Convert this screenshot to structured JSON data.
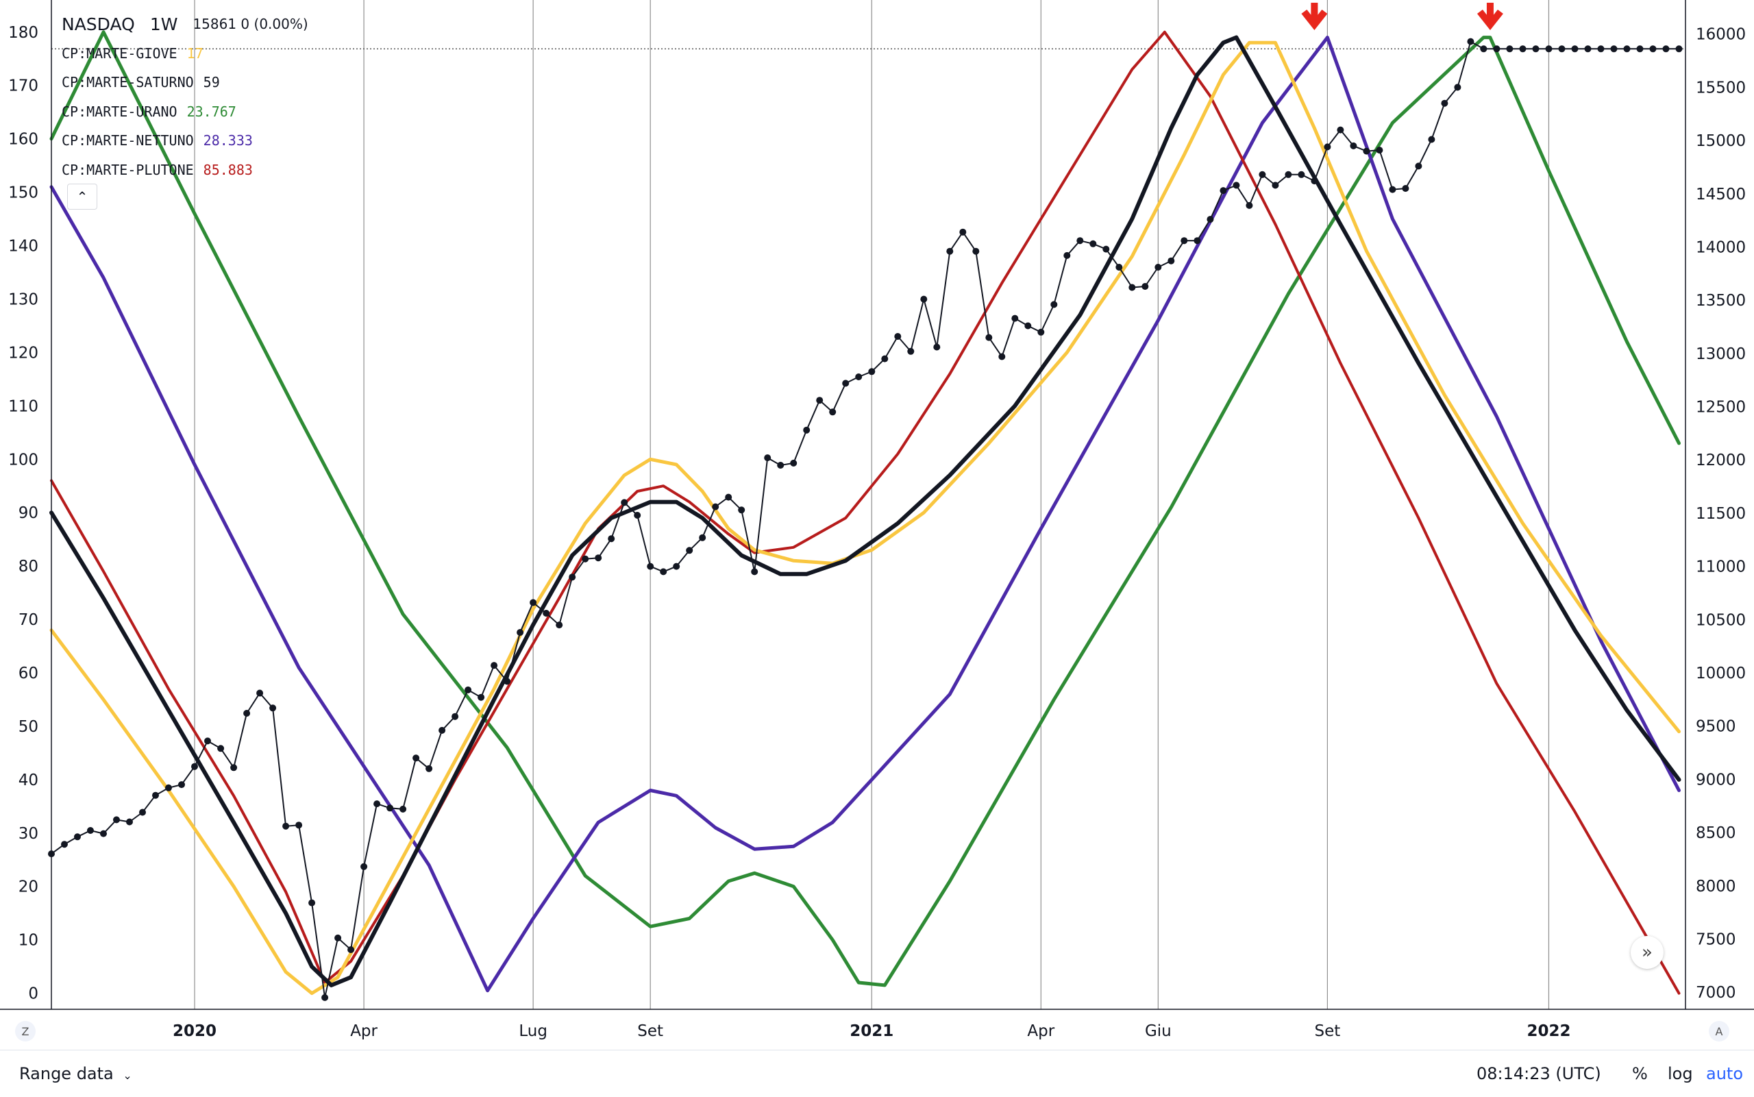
{
  "legend": {
    "symbol": "NASDAQ",
    "timeframe": "1W",
    "quote": "15861 0 (0.00%)",
    "indicators": [
      {
        "name": "CP:MARTE-GIOVE",
        "value": "17",
        "color": "#f9c640"
      },
      {
        "name": "CP:MARTE-SATURNO",
        "value": "59",
        "color": "#131722"
      },
      {
        "name": "CP:MARTE-URANO",
        "value": "23.767",
        "color": "#2e8b35"
      },
      {
        "name": "CP:MARTE-NETTUNO",
        "value": "28.333",
        "color": "#4b2aa8"
      },
      {
        "name": "CP:MARTE-PLUTONE",
        "value": "85.883",
        "color": "#b71c1c"
      }
    ],
    "collapse_icon": "chevron-up-icon"
  },
  "bottom": {
    "range_label": "Range data",
    "clock": "08:14:23 (UTC)",
    "percent": "%",
    "log": "log",
    "auto": "auto",
    "left_corner": "Z",
    "right_corner": "A",
    "scroll_icon": "double-chevron-right-icon"
  },
  "markers": {
    "arrow_color": "#e8261c",
    "arrow_icon": "arrow-down-icon"
  },
  "chart_data": {
    "type": "line",
    "x_ticks": [
      {
        "label": "2020",
        "t": 12,
        "bold": true
      },
      {
        "label": "Apr",
        "t": 25
      },
      {
        "label": "Lug",
        "t": 38
      },
      {
        "label": "Set",
        "t": 47
      },
      {
        "label": "2021",
        "t": 64,
        "bold": true
      },
      {
        "label": "Apr",
        "t": 77
      },
      {
        "label": "Giu",
        "t": 86
      },
      {
        "label": "Set",
        "t": 99
      },
      {
        "label": "2022",
        "t": 116,
        "bold": true
      }
    ],
    "x_range": [
      1,
      126.5
    ],
    "left_axis": {
      "ticks": [
        0,
        10,
        20,
        30,
        40,
        50,
        60,
        70,
        80,
        90,
        100,
        110,
        120,
        130,
        140,
        150,
        160,
        170,
        180
      ],
      "range": [
        -3,
        186
      ]
    },
    "right_axis": {
      "ticks": [
        7000,
        7500,
        8000,
        8500,
        9000,
        9500,
        10000,
        10500,
        11000,
        11500,
        12000,
        12500,
        13000,
        13500,
        14000,
        14500,
        15000,
        15500,
        16000
      ],
      "range": [
        6840,
        16320
      ]
    },
    "price_line": {
      "value": 15861
    },
    "marker_weeks": [
      98,
      111.5
    ],
    "series": [
      {
        "name": "CP:MARTE-URANO",
        "color": "#2e8b35",
        "width": 5,
        "axis": "left",
        "points": [
          [
            1,
            160
          ],
          [
            5,
            180
          ],
          [
            12,
            146
          ],
          [
            20,
            108
          ],
          [
            28,
            71
          ],
          [
            36,
            46
          ],
          [
            42,
            22
          ],
          [
            47,
            12.5
          ],
          [
            50,
            14
          ],
          [
            53,
            21
          ],
          [
            55,
            22.5
          ],
          [
            58,
            20
          ],
          [
            61,
            10
          ],
          [
            63,
            2
          ],
          [
            65,
            1.5
          ],
          [
            70,
            21
          ],
          [
            78,
            55
          ],
          [
            87,
            91
          ],
          [
            96,
            131
          ],
          [
            104,
            163
          ],
          [
            111,
            179
          ],
          [
            111.5,
            179
          ],
          [
            116,
            154
          ],
          [
            122,
            122
          ],
          [
            126,
            103
          ]
        ]
      },
      {
        "name": "CP:MARTE-NETTUNO",
        "color": "#4b2aa8",
        "width": 5,
        "axis": "left",
        "points": [
          [
            1,
            151
          ],
          [
            5,
            134
          ],
          [
            12,
            99
          ],
          [
            20,
            61
          ],
          [
            30,
            24
          ],
          [
            34.5,
            0.5
          ],
          [
            38,
            14
          ],
          [
            43,
            32
          ],
          [
            47,
            38
          ],
          [
            49,
            37
          ],
          [
            52,
            31
          ],
          [
            55,
            27
          ],
          [
            58,
            27.5
          ],
          [
            61,
            32
          ],
          [
            64,
            40
          ],
          [
            70,
            56
          ],
          [
            77,
            87
          ],
          [
            86,
            126
          ],
          [
            94,
            163
          ],
          [
            99,
            179
          ],
          [
            104,
            145
          ],
          [
            112,
            108
          ],
          [
            120,
            66
          ],
          [
            126,
            38
          ]
        ]
      },
      {
        "name": "CP:MARTE-PLUTONE",
        "color": "#b71c1c",
        "width": 4,
        "axis": "left",
        "points": [
          [
            1,
            96
          ],
          [
            5,
            79
          ],
          [
            10,
            57
          ],
          [
            15,
            37
          ],
          [
            19,
            19
          ],
          [
            22,
            2
          ],
          [
            24,
            6
          ],
          [
            28,
            22
          ],
          [
            32,
            40
          ],
          [
            36,
            57
          ],
          [
            40,
            74
          ],
          [
            43,
            87
          ],
          [
            46,
            94
          ],
          [
            48,
            95
          ],
          [
            50,
            92
          ],
          [
            53,
            86
          ],
          [
            55,
            82.5
          ],
          [
            58,
            83.5
          ],
          [
            62,
            89
          ],
          [
            66,
            101
          ],
          [
            70,
            116
          ],
          [
            74,
            133
          ],
          [
            79,
            153
          ],
          [
            84,
            173
          ],
          [
            86.5,
            180
          ],
          [
            90,
            168
          ],
          [
            95,
            144
          ],
          [
            100,
            118
          ],
          [
            106,
            89
          ],
          [
            112,
            58
          ],
          [
            118,
            34
          ],
          [
            122,
            17
          ],
          [
            126,
            0
          ]
        ]
      },
      {
        "name": "CP:MARTE-GIOVE",
        "color": "#f9c640",
        "width": 5,
        "axis": "left",
        "points": [
          [
            1,
            68
          ],
          [
            5,
            55
          ],
          [
            10,
            38
          ],
          [
            15,
            20
          ],
          [
            19,
            4
          ],
          [
            21,
            0
          ],
          [
            23,
            3
          ],
          [
            27,
            21
          ],
          [
            31,
            39
          ],
          [
            35,
            57
          ],
          [
            38,
            72
          ],
          [
            42,
            88
          ],
          [
            45,
            97
          ],
          [
            47,
            100
          ],
          [
            49,
            99
          ],
          [
            51,
            94
          ],
          [
            53,
            87
          ],
          [
            55,
            83
          ],
          [
            58,
            81
          ],
          [
            61,
            80.5
          ],
          [
            64,
            83
          ],
          [
            68,
            90
          ],
          [
            73,
            103
          ],
          [
            79,
            120
          ],
          [
            84,
            138
          ],
          [
            88,
            157
          ],
          [
            91,
            172
          ],
          [
            93,
            178
          ],
          [
            95,
            178
          ],
          [
            98,
            162
          ],
          [
            102,
            139
          ],
          [
            108,
            112
          ],
          [
            114,
            88
          ],
          [
            120,
            67
          ],
          [
            126,
            49
          ]
        ]
      },
      {
        "name": "CP:MARTE-SATURNO",
        "color": "#131722",
        "width": 6,
        "axis": "left",
        "points": [
          [
            1,
            90
          ],
          [
            5,
            74
          ],
          [
            10,
            53
          ],
          [
            15,
            32
          ],
          [
            19,
            15
          ],
          [
            21,
            5
          ],
          [
            22.5,
            1.5
          ],
          [
            24,
            3
          ],
          [
            27,
            17
          ],
          [
            31,
            36
          ],
          [
            35,
            55
          ],
          [
            38,
            69
          ],
          [
            41,
            82
          ],
          [
            44,
            89
          ],
          [
            47,
            92
          ],
          [
            49,
            92
          ],
          [
            51,
            89
          ],
          [
            54,
            82
          ],
          [
            57,
            78.5
          ],
          [
            59,
            78.5
          ],
          [
            62,
            81
          ],
          [
            66,
            88
          ],
          [
            70,
            97
          ],
          [
            75,
            110
          ],
          [
            80,
            127
          ],
          [
            84,
            145
          ],
          [
            87,
            162
          ],
          [
            89,
            172
          ],
          [
            91,
            178
          ],
          [
            92,
            179
          ],
          [
            95,
            166
          ],
          [
            100,
            144
          ],
          [
            106,
            118
          ],
          [
            112,
            93
          ],
          [
            118,
            68
          ],
          [
            122,
            53
          ],
          [
            126,
            40
          ]
        ]
      },
      {
        "name": "NASDAQ",
        "color": "#131722",
        "width": 2,
        "axis": "right",
        "markers": true,
        "points": [
          [
            1,
            8300
          ],
          [
            2,
            8390
          ],
          [
            3,
            8460
          ],
          [
            4,
            8520
          ],
          [
            5,
            8490
          ],
          [
            6,
            8620
          ],
          [
            7,
            8600
          ],
          [
            8,
            8690
          ],
          [
            9,
            8850
          ],
          [
            10,
            8920
          ],
          [
            11,
            8950
          ],
          [
            12,
            9120
          ],
          [
            13,
            9360
          ],
          [
            14,
            9290
          ],
          [
            15,
            9110
          ],
          [
            16,
            9620
          ],
          [
            17,
            9810
          ],
          [
            18,
            9670
          ],
          [
            19,
            8560
          ],
          [
            20,
            8570
          ],
          [
            21,
            7840
          ],
          [
            22,
            6950
          ],
          [
            23,
            7510
          ],
          [
            24,
            7400
          ],
          [
            25,
            8180
          ],
          [
            26,
            8770
          ],
          [
            27,
            8730
          ],
          [
            28,
            8720
          ],
          [
            29,
            9200
          ],
          [
            30,
            9100
          ],
          [
            31,
            9460
          ],
          [
            32,
            9590
          ],
          [
            33,
            9840
          ],
          [
            34,
            9770
          ],
          [
            35,
            10070
          ],
          [
            36,
            9920
          ],
          [
            37,
            10380
          ],
          [
            38,
            10660
          ],
          [
            39,
            10560
          ],
          [
            40,
            10450
          ],
          [
            41,
            10900
          ],
          [
            42,
            11070
          ],
          [
            43,
            11080
          ],
          [
            44,
            11260
          ],
          [
            45,
            11600
          ],
          [
            46,
            11480
          ],
          [
            47,
            11000
          ],
          [
            48,
            10950
          ],
          [
            49,
            11000
          ],
          [
            50,
            11150
          ],
          [
            51,
            11270
          ],
          [
            52,
            11560
          ],
          [
            53,
            11650
          ],
          [
            54,
            11530
          ],
          [
            55,
            10950
          ],
          [
            56,
            12020
          ],
          [
            57,
            11950
          ],
          [
            58,
            11970
          ],
          [
            59,
            12280
          ],
          [
            60,
            12560
          ],
          [
            61,
            12450
          ],
          [
            62,
            12720
          ],
          [
            63,
            12780
          ],
          [
            64,
            12830
          ],
          [
            65,
            12950
          ],
          [
            66,
            13160
          ],
          [
            67,
            13020
          ],
          [
            68,
            13510
          ],
          [
            69,
            13060
          ],
          [
            70,
            13960
          ],
          [
            71,
            14140
          ],
          [
            72,
            13960
          ],
          [
            73,
            13150
          ],
          [
            74,
            12970
          ],
          [
            75,
            13330
          ],
          [
            76,
            13260
          ],
          [
            77,
            13200
          ],
          [
            78,
            13460
          ],
          [
            79,
            13920
          ],
          [
            80,
            14060
          ],
          [
            81,
            14030
          ],
          [
            82,
            13980
          ],
          [
            83,
            13810
          ],
          [
            84,
            13620
          ],
          [
            85,
            13630
          ],
          [
            86,
            13810
          ],
          [
            87,
            13870
          ],
          [
            88,
            14060
          ],
          [
            89,
            14060
          ],
          [
            90,
            14260
          ],
          [
            91,
            14530
          ],
          [
            92,
            14580
          ],
          [
            93,
            14390
          ],
          [
            94,
            14680
          ],
          [
            95,
            14580
          ],
          [
            96,
            14680
          ],
          [
            97,
            14680
          ],
          [
            98,
            14620
          ],
          [
            99,
            14940
          ],
          [
            100,
            15100
          ],
          [
            101,
            14950
          ],
          [
            102,
            14900
          ],
          [
            103,
            14910
          ],
          [
            104,
            14540
          ],
          [
            105,
            14550
          ],
          [
            106,
            14760
          ],
          [
            107,
            15010
          ],
          [
            108,
            15350
          ],
          [
            109,
            15500
          ],
          [
            110,
            15930
          ],
          [
            111,
            15861
          ],
          [
            112,
            15861
          ],
          [
            113,
            15861
          ],
          [
            114,
            15861
          ],
          [
            115,
            15861
          ],
          [
            116,
            15861
          ],
          [
            117,
            15861
          ],
          [
            118,
            15861
          ],
          [
            119,
            15861
          ],
          [
            120,
            15861
          ],
          [
            121,
            15861
          ],
          [
            122,
            15861
          ],
          [
            123,
            15861
          ],
          [
            124,
            15861
          ],
          [
            125,
            15861
          ],
          [
            126,
            15861
          ]
        ]
      }
    ]
  }
}
